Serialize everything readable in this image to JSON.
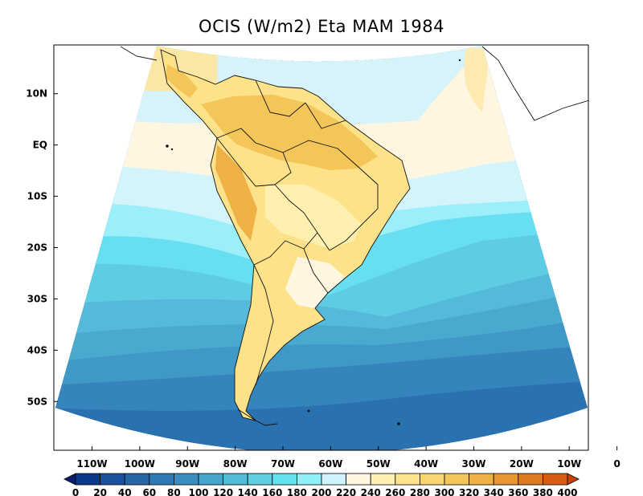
{
  "chart_data": {
    "type": "heatmap",
    "title": "OCIS (W/m2) Eta MAM 1984",
    "x_ticks": [
      "110W",
      "100W",
      "90W",
      "80W",
      "70W",
      "60W",
      "50W",
      "40W",
      "30W",
      "20W",
      "10W",
      "0"
    ],
    "y_ticks": [
      "10N",
      "EQ",
      "10S",
      "20S",
      "30S",
      "40S",
      "50S"
    ],
    "xlim": [
      -118,
      -6
    ],
    "ylim": [
      -59.5,
      19.5
    ],
    "colorbar": {
      "levels": [
        "0",
        "20",
        "40",
        "60",
        "80",
        "100",
        "120",
        "140",
        "160",
        "180",
        "200",
        "220",
        "240",
        "260",
        "280",
        "300",
        "320",
        "340",
        "360",
        "380",
        "400"
      ],
      "colors": [
        "#08206b",
        "#0b3a8a",
        "#1c519d",
        "#2466a6",
        "#2e7ab4",
        "#3a8fc0",
        "#46a6cd",
        "#52bbd8",
        "#5fcfe2",
        "#65e2ef",
        "#8ff0fa",
        "#cff4fb",
        "#fff6e1",
        "#fff1b4",
        "#fde48c",
        "#f9d672",
        "#f4c659",
        "#efb146",
        "#e89633",
        "#e07a22",
        "#d95c12",
        "#c94306"
      ]
    }
  }
}
